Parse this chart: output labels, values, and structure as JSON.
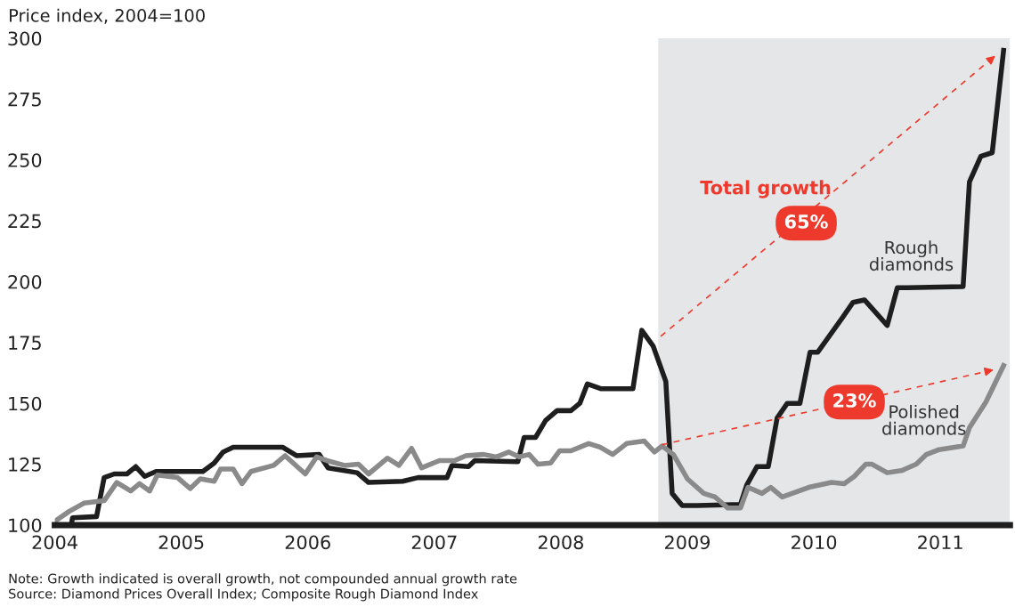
{
  "chart_data": {
    "type": "line",
    "ylabel": "Price index, 2004=100",
    "ylim": [
      100,
      300
    ],
    "yticks": [
      100,
      125,
      150,
      175,
      200,
      225,
      250,
      275,
      300
    ],
    "xlim": [
      2004,
      2011.55
    ],
    "xticks": [
      {
        "value": 2004,
        "label": "2004"
      },
      {
        "value": 2005,
        "label": "2005"
      },
      {
        "value": 2006,
        "label": "2006"
      },
      {
        "value": 2007,
        "label": "2007"
      },
      {
        "value": 2008,
        "label": "2008"
      },
      {
        "value": 2009,
        "label": "2009"
      },
      {
        "value": 2010,
        "label": "2010"
      },
      {
        "value": 2011,
        "label": "2011"
      }
    ],
    "grid": false,
    "bands": [
      {
        "axis": "x",
        "from": 2008.77,
        "to": 2011.55,
        "color": "#e5e6e8"
      }
    ],
    "series": [
      {
        "name": "Rough diamonds",
        "color": "#1e1e1e",
        "x": [
          2004.0,
          2004.13,
          2004.14,
          2004.33,
          2004.39,
          2004.47,
          2004.57,
          2004.64,
          2004.71,
          2004.8,
          2005.17,
          2005.26,
          2005.33,
          2005.41,
          2005.8,
          2005.91,
          2006.09,
          2006.16,
          2006.39,
          2006.48,
          2006.75,
          2006.87,
          2007.1,
          2007.14,
          2007.27,
          2007.32,
          2007.66,
          2007.71,
          2007.8,
          2007.88,
          2007.97,
          2008.08,
          2008.15,
          2008.21,
          2008.32,
          2008.57,
          2008.64,
          2008.73,
          2008.83,
          2008.88,
          2008.96,
          2009.08,
          2009.42,
          2009.47,
          2009.55,
          2009.64,
          2009.71,
          2009.79,
          2009.89,
          2009.97,
          2010.03,
          2010.23,
          2010.31,
          2010.4,
          2010.58,
          2010.66,
          2010.74,
          2011.18,
          2011.23,
          2011.32,
          2011.41,
          2011.5
        ],
        "values": [
          100,
          100,
          103,
          103.5,
          119.5,
          121,
          121,
          124,
          120,
          122,
          122,
          125.5,
          130,
          132,
          132,
          128.5,
          129,
          123.5,
          121.5,
          117.5,
          118,
          119.5,
          119.5,
          124.5,
          124,
          126.5,
          126,
          136,
          136,
          143,
          147,
          147,
          150,
          158,
          156,
          156,
          180,
          173.5,
          159,
          113,
          108,
          108,
          108.5,
          116.5,
          124,
          124,
          144,
          150,
          150,
          171,
          171,
          185.5,
          191.5,
          192.5,
          182,
          197.5,
          197.5,
          198,
          241,
          251.5,
          253,
          295
        ]
      },
      {
        "name": "Polished diamonds",
        "color": "#8a8a8a",
        "x": [
          2004.0,
          2004.11,
          2004.23,
          2004.39,
          2004.49,
          2004.6,
          2004.67,
          2004.75,
          2004.81,
          2004.97,
          2005.07,
          2005.15,
          2005.26,
          2005.31,
          2005.41,
          2005.48,
          2005.55,
          2005.73,
          2005.82,
          2005.98,
          2006.07,
          2006.15,
          2006.29,
          2006.4,
          2006.48,
          2006.63,
          2006.72,
          2006.82,
          2006.9,
          2007.04,
          2007.16,
          2007.25,
          2007.39,
          2007.49,
          2007.59,
          2007.67,
          2007.75,
          2007.82,
          2007.92,
          2007.99,
          2008.08,
          2008.22,
          2008.31,
          2008.41,
          2008.52,
          2008.66,
          2008.74,
          2008.8,
          2008.89,
          2009.0,
          2009.13,
          2009.22,
          2009.32,
          2009.42,
          2009.48,
          2009.59,
          2009.66,
          2009.75,
          2009.96,
          2010.14,
          2010.24,
          2010.32,
          2010.41,
          2010.46,
          2010.58,
          2010.7,
          2010.81,
          2010.89,
          2010.99,
          2011.18,
          2011.23,
          2011.36,
          2011.5
        ],
        "values": [
          101.5,
          105.5,
          109,
          110,
          117.5,
          114,
          117,
          114,
          120.5,
          119.5,
          115,
          119,
          118,
          123,
          123,
          117,
          122,
          124.5,
          128.5,
          121,
          128,
          126.5,
          124.5,
          125,
          121,
          127.5,
          124.5,
          131.5,
          123.5,
          126.5,
          126.5,
          128.5,
          129,
          128,
          130,
          128,
          129,
          125,
          125.5,
          130.5,
          130.5,
          133.5,
          132,
          129,
          133.5,
          134.5,
          130,
          132.5,
          129,
          119,
          113,
          111.5,
          107,
          107,
          115.5,
          113,
          115.5,
          111.5,
          115.5,
          117.5,
          117,
          120,
          125,
          125,
          121.5,
          122.5,
          125,
          129,
          131,
          132.5,
          140,
          150.5,
          165.5
        ]
      },
      {
        "color": "#ee3a2c",
        "line_style": "dashed",
        "x": [
          2008.79,
          2011.45
        ],
        "values": [
          177.5,
          293.5
        ]
      },
      {
        "color": "#ee3a2c",
        "line_style": "dashed",
        "x": [
          2008.8,
          2011.44
        ],
        "values": [
          133,
          164
        ]
      }
    ],
    "annotations": [
      "Total growth",
      "65%",
      {
        "text": "23%",
        "x": 2010.32,
        "y": 150.5
      },
      "Note: Growth indicated is overall growth, not compounded annual growth rate",
      "Source: Diamond Prices Overall Index; Composite Rough Diamond Index"
    ]
  }
}
